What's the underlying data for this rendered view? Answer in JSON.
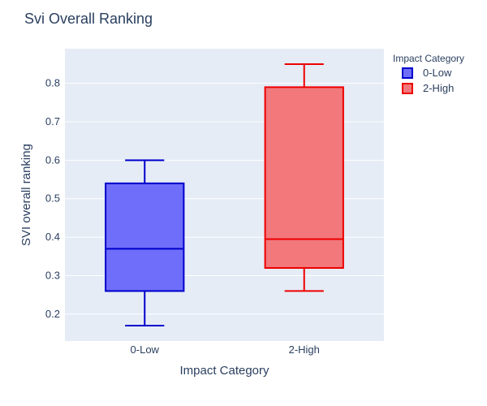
{
  "chart_data": {
    "type": "box",
    "title": "Svi Overall Ranking",
    "xlabel": "Impact Category",
    "ylabel": "SVI overall ranking",
    "categories": [
      "0-Low",
      "2-High"
    ],
    "ylim": [
      0.13,
      0.89
    ],
    "yticks": [
      0.2,
      0.3,
      0.4,
      0.5,
      0.6,
      0.7,
      0.8
    ],
    "grid": true,
    "legend": {
      "title": "Impact Category",
      "position": "top-right"
    },
    "series": [
      {
        "name": "0-Low",
        "category": "0-Low",
        "min": 0.17,
        "q1": 0.26,
        "median": 0.37,
        "q3": 0.54,
        "max": 0.6,
        "line_color": "#0000cc",
        "fill_color": "#6e6efa"
      },
      {
        "name": "2-High",
        "category": "2-High",
        "min": 0.26,
        "q1": 0.32,
        "median": 0.395,
        "q3": 0.79,
        "max": 0.85,
        "line_color": "#ee0000",
        "fill_color": "#f2787c"
      }
    ],
    "plot_background": "#e5ecf6"
  }
}
